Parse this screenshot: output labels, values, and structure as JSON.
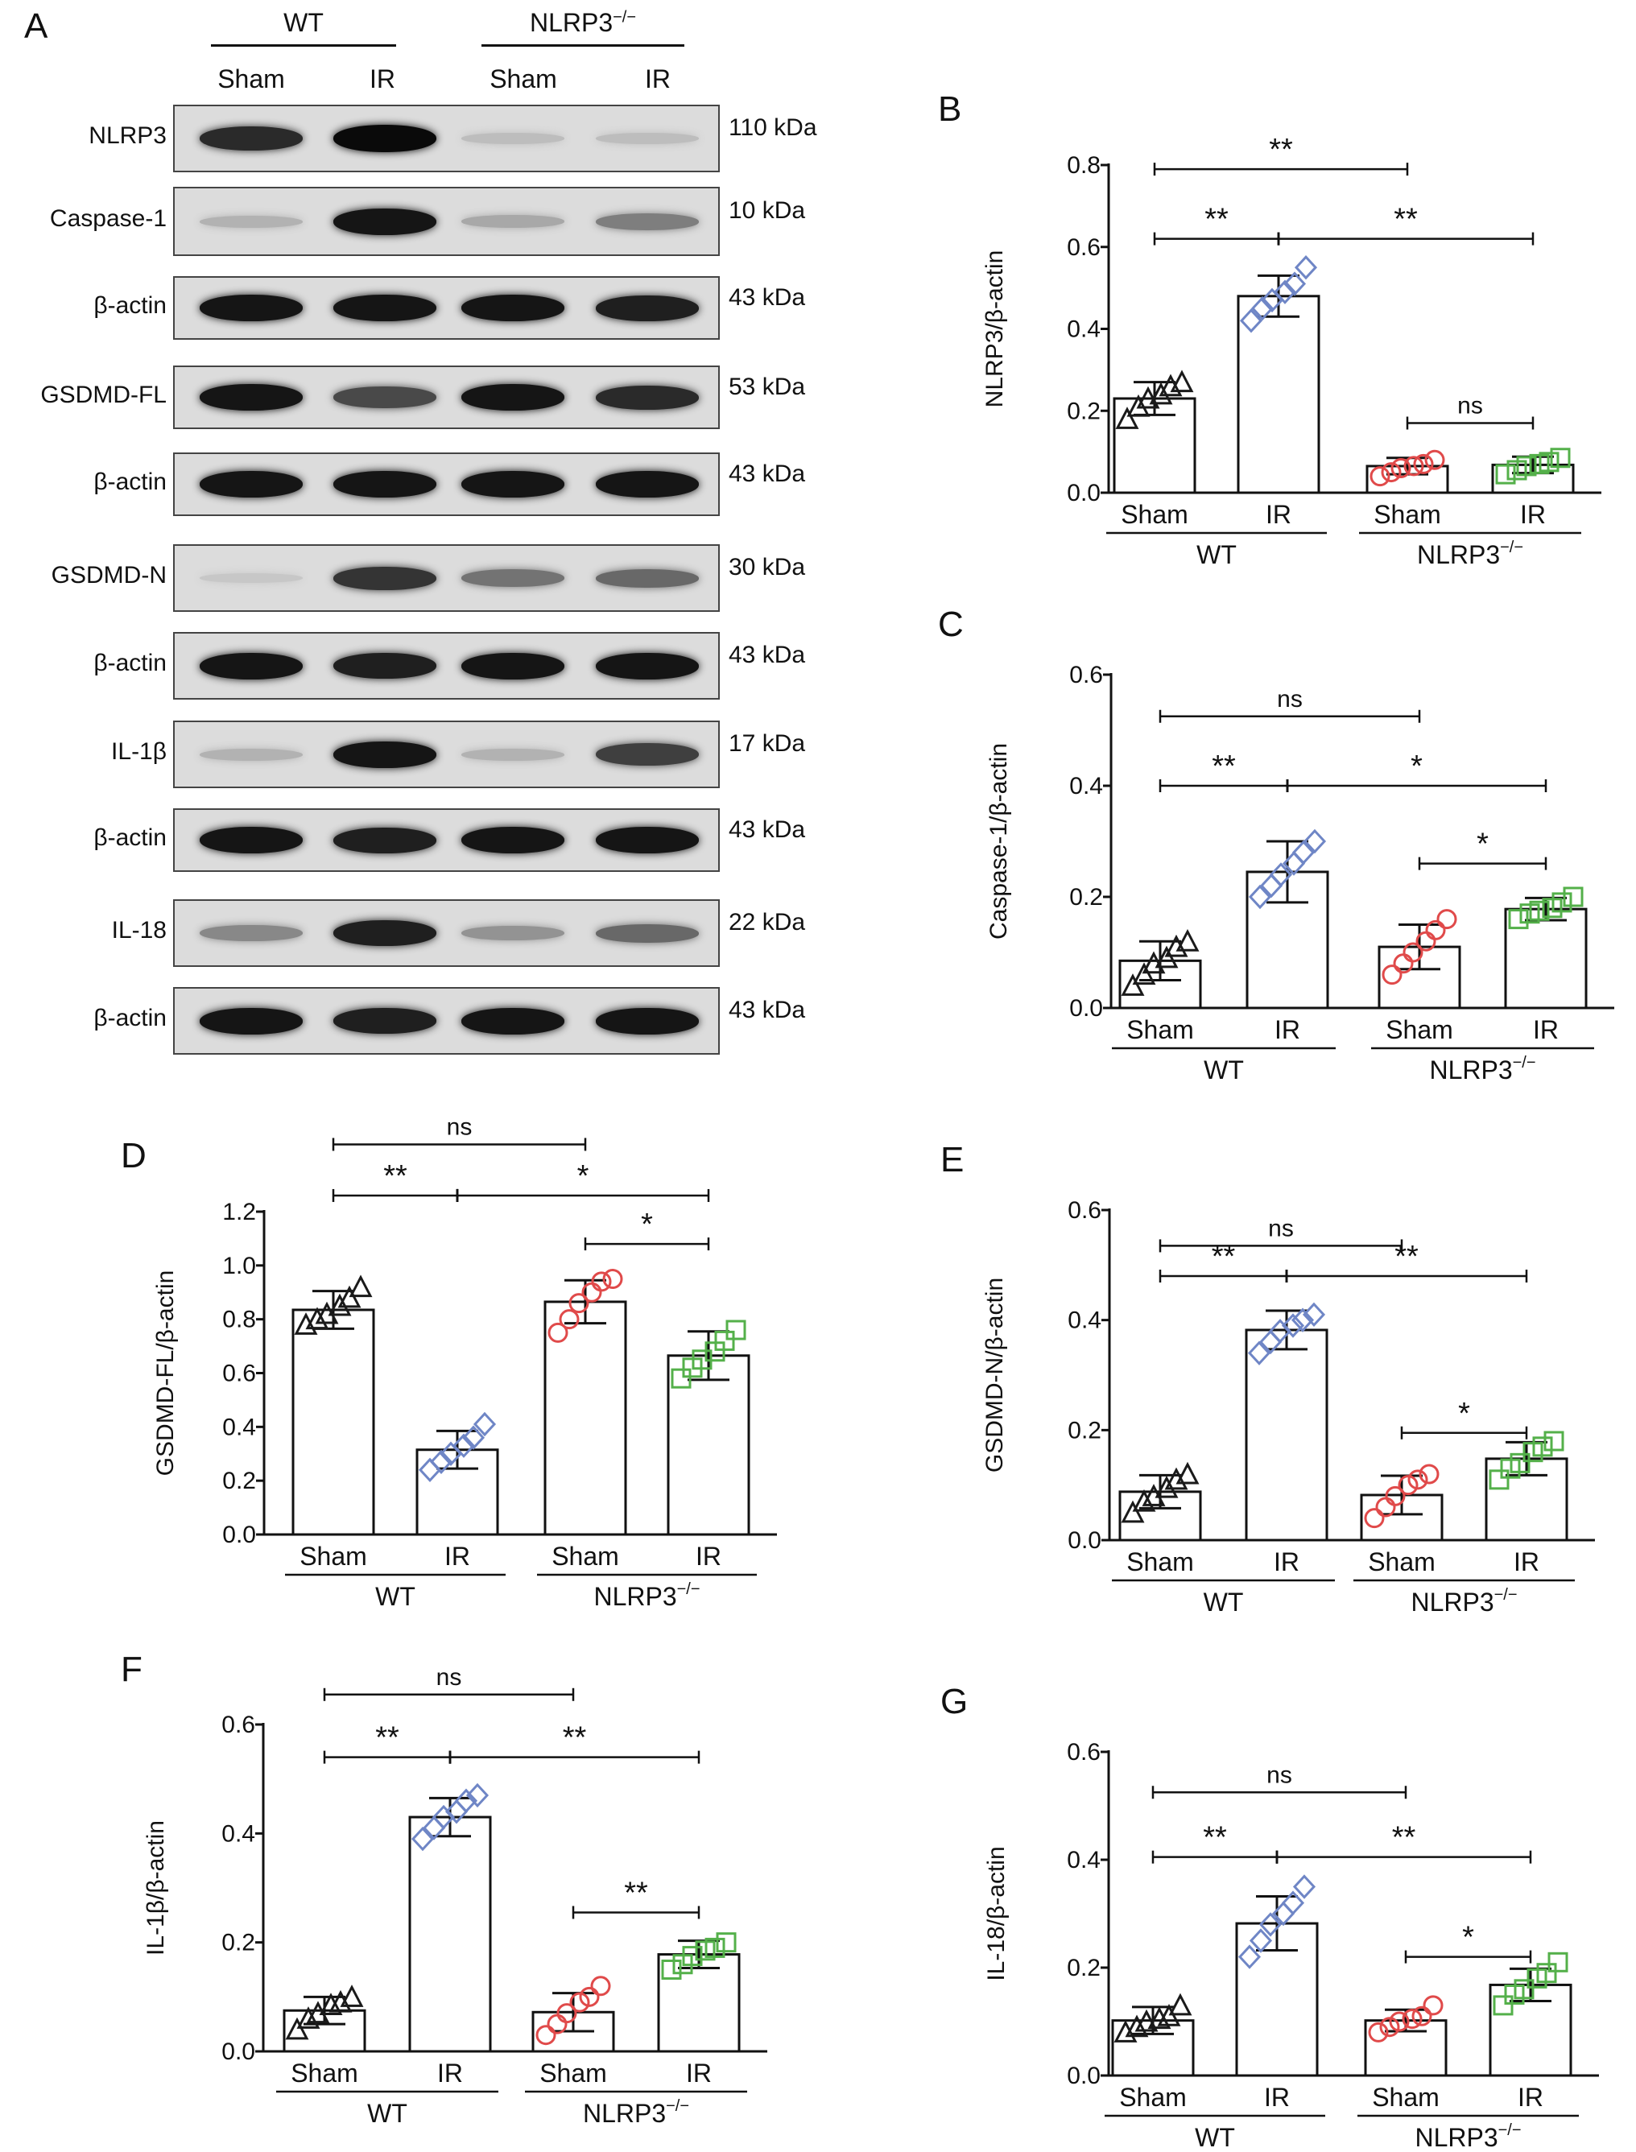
{
  "panels": {
    "A": "A",
    "B": "B",
    "C": "C",
    "D": "D",
    "E": "E",
    "F": "F",
    "G": "G"
  },
  "blot": {
    "groups": [
      {
        "label": "WT",
        "lanes": [
          "Sham",
          "IR"
        ]
      },
      {
        "label": "NLRP3",
        "sup": "−/−",
        "lanes": [
          "Sham",
          "IR"
        ]
      }
    ],
    "rows": [
      {
        "label": "NLRP3",
        "kda": "110 kDa",
        "intensity": [
          0.85,
          1.0,
          0.15,
          0.15
        ]
      },
      {
        "label": "Caspase-1",
        "kda": "10 kDa",
        "intensity": [
          0.2,
          0.95,
          0.25,
          0.45
        ]
      },
      {
        "label": "β-actin",
        "kda": "43 kDa",
        "intensity": [
          0.95,
          0.95,
          0.95,
          0.9
        ]
      },
      {
        "label": "GSDMD-FL",
        "kda": "53 kDa",
        "intensity": [
          0.95,
          0.7,
          0.95,
          0.85
        ]
      },
      {
        "label": "β-actin",
        "kda": "43 kDa",
        "intensity": [
          0.95,
          0.95,
          0.95,
          0.95
        ]
      },
      {
        "label": "GSDMD-N",
        "kda": "30 kDa",
        "intensity": [
          0.1,
          0.8,
          0.5,
          0.55
        ]
      },
      {
        "label": "β-actin",
        "kda": "43 kDa",
        "intensity": [
          0.95,
          0.9,
          0.95,
          0.95
        ]
      },
      {
        "label": "IL-1β",
        "kda": "17 kDa",
        "intensity": [
          0.2,
          0.95,
          0.2,
          0.75
        ]
      },
      {
        "label": "β-actin",
        "kda": "43 kDa",
        "intensity": [
          0.95,
          0.9,
          0.95,
          0.95
        ]
      },
      {
        "label": "IL-18",
        "kda": "22 kDa",
        "intensity": [
          0.4,
          0.9,
          0.35,
          0.55
        ]
      },
      {
        "label": "β-actin",
        "kda": "43 kDa",
        "intensity": [
          0.95,
          0.9,
          0.95,
          0.95
        ]
      }
    ]
  },
  "chart_data": [
    {
      "panel": "B",
      "type": "bar",
      "ylabel": "NLRP3/β-actin",
      "ylim": [
        0,
        0.8
      ],
      "yticks": [
        "0.0",
        "0.2",
        "0.4",
        "0.6",
        "0.8"
      ],
      "categories": [
        "Sham",
        "IR",
        "Sham",
        "IR"
      ],
      "groups": [
        "WT",
        "NLRP3"
      ],
      "group_sup": "−/−",
      "values": [
        0.23,
        0.48,
        0.065,
        0.068
      ],
      "errors": [
        0.04,
        0.05,
        0.02,
        0.02
      ],
      "points": [
        [
          0.18,
          0.21,
          0.23,
          0.24,
          0.26,
          0.27
        ],
        [
          0.42,
          0.45,
          0.47,
          0.49,
          0.51,
          0.55
        ],
        [
          0.04,
          0.05,
          0.06,
          0.065,
          0.07,
          0.08
        ],
        [
          0.045,
          0.055,
          0.065,
          0.07,
          0.075,
          0.085
        ]
      ],
      "markers": [
        "triangle",
        "diamond",
        "circle",
        "square"
      ],
      "colors": [
        "#1a1a1a",
        "#6f86c6",
        "#e04a4a",
        "#54b04a"
      ],
      "significance": [
        {
          "from": 0,
          "to": 2,
          "label": "**",
          "y": 0.79
        },
        {
          "from": 0,
          "to": 1,
          "label": "**",
          "y": 0.62
        },
        {
          "from": 1,
          "to": 3,
          "label": "**",
          "y": 0.62
        },
        {
          "from": 2,
          "to": 3,
          "label": "ns",
          "y": 0.17
        }
      ]
    },
    {
      "panel": "C",
      "type": "bar",
      "ylabel": "Caspase-1/β-actin",
      "ylim": [
        0,
        0.6
      ],
      "yticks": [
        "0.0",
        "0.2",
        "0.4",
        "0.6"
      ],
      "categories": [
        "Sham",
        "IR",
        "Sham",
        "IR"
      ],
      "groups": [
        "WT",
        "NLRP3"
      ],
      "group_sup": "−/−",
      "values": [
        0.085,
        0.245,
        0.11,
        0.178
      ],
      "errors": [
        0.035,
        0.055,
        0.04,
        0.02
      ],
      "points": [
        [
          0.04,
          0.06,
          0.08,
          0.09,
          0.11,
          0.12
        ],
        [
          0.2,
          0.22,
          0.24,
          0.26,
          0.28,
          0.3
        ],
        [
          0.06,
          0.08,
          0.1,
          0.12,
          0.14,
          0.16
        ],
        [
          0.16,
          0.17,
          0.175,
          0.18,
          0.19,
          0.2
        ]
      ],
      "markers": [
        "triangle",
        "diamond",
        "circle",
        "square"
      ],
      "colors": [
        "#1a1a1a",
        "#6f86c6",
        "#e04a4a",
        "#54b04a"
      ],
      "significance": [
        {
          "from": 0,
          "to": 2,
          "label": "ns",
          "y": 0.525
        },
        {
          "from": 0,
          "to": 1,
          "label": "**",
          "y": 0.4
        },
        {
          "from": 1,
          "to": 3,
          "label": "*",
          "y": 0.4
        },
        {
          "from": 2,
          "to": 3,
          "label": "*",
          "y": 0.26
        }
      ]
    },
    {
      "panel": "D",
      "type": "bar",
      "ylabel": "GSDMD-FL/β-actin",
      "ylim": [
        0,
        1.2
      ],
      "yticks": [
        "0.0",
        "0.2",
        "0.4",
        "0.6",
        "0.8",
        "1.0",
        "1.2"
      ],
      "categories": [
        "Sham",
        "IR",
        "Sham",
        "IR"
      ],
      "groups": [
        "WT",
        "NLRP3"
      ],
      "group_sup": "−/−",
      "values": [
        0.835,
        0.315,
        0.865,
        0.665
      ],
      "errors": [
        0.07,
        0.07,
        0.08,
        0.09
      ],
      "points": [
        [
          0.78,
          0.8,
          0.82,
          0.85,
          0.88,
          0.92
        ],
        [
          0.24,
          0.27,
          0.3,
          0.33,
          0.36,
          0.41
        ],
        [
          0.75,
          0.8,
          0.86,
          0.9,
          0.94,
          0.95
        ],
        [
          0.58,
          0.62,
          0.65,
          0.68,
          0.72,
          0.76
        ]
      ],
      "markers": [
        "triangle",
        "diamond",
        "circle",
        "square"
      ],
      "colors": [
        "#1a1a1a",
        "#6f86c6",
        "#e04a4a",
        "#54b04a"
      ],
      "significance": [
        {
          "from": 0,
          "to": 2,
          "label": "ns",
          "y": 1.45
        },
        {
          "from": 0,
          "to": 1,
          "label": "**",
          "y": 1.26
        },
        {
          "from": 1,
          "to": 3,
          "label": "*",
          "y": 1.26
        },
        {
          "from": 2,
          "to": 3,
          "label": "*",
          "y": 1.08
        }
      ]
    },
    {
      "panel": "E",
      "type": "bar",
      "ylabel": "GSDMD-N/β-actin",
      "ylim": [
        0,
        0.6
      ],
      "yticks": [
        "0.0",
        "0.2",
        "0.4",
        "0.6"
      ],
      "categories": [
        "Sham",
        "IR",
        "Sham",
        "IR"
      ],
      "groups": [
        "WT",
        "NLRP3"
      ],
      "group_sup": "−/−",
      "values": [
        0.088,
        0.382,
        0.082,
        0.148
      ],
      "errors": [
        0.03,
        0.035,
        0.035,
        0.03
      ],
      "points": [
        [
          0.05,
          0.07,
          0.08,
          0.095,
          0.11,
          0.12
        ],
        [
          0.34,
          0.36,
          0.38,
          0.39,
          0.4,
          0.41
        ],
        [
          0.04,
          0.06,
          0.08,
          0.1,
          0.11,
          0.12
        ],
        [
          0.11,
          0.13,
          0.14,
          0.16,
          0.17,
          0.18
        ]
      ],
      "markers": [
        "triangle",
        "diamond",
        "circle",
        "square"
      ],
      "colors": [
        "#1a1a1a",
        "#6f86c6",
        "#e04a4a",
        "#54b04a"
      ],
      "significance": [
        {
          "from": 0,
          "to": 2,
          "label": "ns",
          "y": 0.535
        },
        {
          "from": 0,
          "to": 1,
          "label": "**",
          "y": 0.48
        },
        {
          "from": 1,
          "to": 3,
          "label": "**",
          "y": 0.48
        },
        {
          "from": 2,
          "to": 3,
          "label": "*",
          "y": 0.195
        }
      ]
    },
    {
      "panel": "F",
      "type": "bar",
      "ylabel": "IL-1β/β-actin",
      "ylim": [
        0,
        0.6
      ],
      "yticks": [
        "0.0",
        "0.2",
        "0.4",
        "0.6"
      ],
      "categories": [
        "Sham",
        "IR",
        "Sham",
        "IR"
      ],
      "groups": [
        "WT",
        "NLRP3"
      ],
      "group_sup": "−/−",
      "values": [
        0.075,
        0.43,
        0.072,
        0.178
      ],
      "errors": [
        0.025,
        0.035,
        0.035,
        0.025
      ],
      "points": [
        [
          0.04,
          0.06,
          0.07,
          0.085,
          0.09,
          0.1
        ],
        [
          0.39,
          0.41,
          0.43,
          0.44,
          0.46,
          0.47
        ],
        [
          0.03,
          0.05,
          0.07,
          0.09,
          0.1,
          0.12
        ],
        [
          0.15,
          0.16,
          0.175,
          0.185,
          0.19,
          0.2
        ]
      ],
      "markers": [
        "triangle",
        "diamond",
        "circle",
        "square"
      ],
      "colors": [
        "#1a1a1a",
        "#6f86c6",
        "#e04a4a",
        "#54b04a"
      ],
      "significance": [
        {
          "from": 0,
          "to": 2,
          "label": "ns",
          "y": 0.655
        },
        {
          "from": 0,
          "to": 1,
          "label": "**",
          "y": 0.54
        },
        {
          "from": 1,
          "to": 3,
          "label": "**",
          "y": 0.54
        },
        {
          "from": 2,
          "to": 3,
          "label": "**",
          "y": 0.255
        }
      ]
    },
    {
      "panel": "G",
      "type": "bar",
      "ylabel": "IL-18/β-actin",
      "ylim": [
        0,
        0.6
      ],
      "yticks": [
        "0.0",
        "0.2",
        "0.4",
        "0.6"
      ],
      "categories": [
        "Sham",
        "IR",
        "Sham",
        "IR"
      ],
      "groups": [
        "WT",
        "NLRP3"
      ],
      "group_sup": "−/−",
      "values": [
        0.102,
        0.282,
        0.102,
        0.168
      ],
      "errors": [
        0.025,
        0.05,
        0.02,
        0.03
      ],
      "points": [
        [
          0.08,
          0.09,
          0.1,
          0.105,
          0.11,
          0.13
        ],
        [
          0.22,
          0.25,
          0.28,
          0.3,
          0.32,
          0.35
        ],
        [
          0.08,
          0.09,
          0.1,
          0.105,
          0.11,
          0.13
        ],
        [
          0.13,
          0.15,
          0.16,
          0.18,
          0.19,
          0.21
        ]
      ],
      "markers": [
        "triangle",
        "diamond",
        "circle",
        "square"
      ],
      "colors": [
        "#1a1a1a",
        "#6f86c6",
        "#e04a4a",
        "#54b04a"
      ],
      "significance": [
        {
          "from": 0,
          "to": 2,
          "label": "ns",
          "y": 0.525
        },
        {
          "from": 0,
          "to": 1,
          "label": "**",
          "y": 0.405
        },
        {
          "from": 1,
          "to": 3,
          "label": "**",
          "y": 0.405
        },
        {
          "from": 2,
          "to": 3,
          "label": "*",
          "y": 0.22
        }
      ]
    }
  ]
}
